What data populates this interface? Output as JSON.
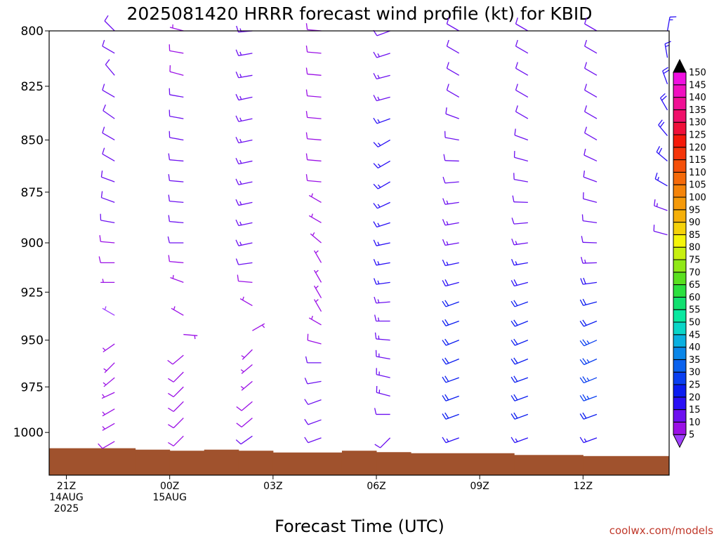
{
  "chart_data": {
    "type": "wind-barb-profile",
    "title": "2025081420 HRRR forecast wind profile (kt) for KBID",
    "xlabel": "Forecast Time (UTC)",
    "credit": "coolwx.com/models",
    "y_axis": {
      "reversed": true,
      "ylim": [
        800,
        1024
      ],
      "ticks": [
        800,
        825,
        850,
        875,
        900,
        925,
        950,
        975,
        1000
      ]
    },
    "x_axis": {
      "xlim": [
        0,
        18
      ],
      "ticks": [
        {
          "hour": 0.5,
          "lines": [
            "21Z",
            "14AUG",
            "2025"
          ]
        },
        {
          "hour": 3.5,
          "lines": [
            "00Z",
            "15AUG"
          ]
        },
        {
          "hour": 6.5,
          "lines": [
            "03Z"
          ]
        },
        {
          "hour": 9.5,
          "lines": [
            "06Z"
          ]
        },
        {
          "hour": 12.5,
          "lines": [
            "09Z"
          ]
        },
        {
          "hour": 15.5,
          "lines": [
            "12Z"
          ]
        }
      ]
    },
    "colorbar": {
      "label_unit": "kt",
      "levels": [
        5,
        10,
        15,
        20,
        25,
        30,
        35,
        40,
        45,
        50,
        55,
        60,
        65,
        70,
        75,
        80,
        85,
        90,
        95,
        100,
        105,
        110,
        115,
        120,
        125,
        130,
        135,
        140,
        145,
        150
      ],
      "colors": [
        "#9b10e6",
        "#6d10f0",
        "#2a10f5",
        "#0b1cf0",
        "#0a3ff0",
        "#0a62ee",
        "#0a86e8",
        "#0ab0e0",
        "#0ad6c8",
        "#0ae8a0",
        "#12e070",
        "#2ce040",
        "#5ae020",
        "#90e818",
        "#c8f010",
        "#f5f50a",
        "#f5d20a",
        "#f5b00a",
        "#f59a0a",
        "#f5840a",
        "#f56a0a",
        "#f5500a",
        "#f5350a",
        "#f51a0a",
        "#f0103a",
        "#f0106a",
        "#f01095",
        "#f010c0",
        "#f010e0",
        "#000000"
      ],
      "under_color": "#a040ff",
      "over_color": "#000000"
    },
    "terrain": {
      "color": "#a0522d",
      "surface_pressure": [
        {
          "x0": 0,
          "x1": 2.5,
          "p": 1008.8
        },
        {
          "x0": 2.5,
          "x1": 3.5,
          "p": 1009.6
        },
        {
          "x0": 3.5,
          "x1": 4.5,
          "p": 1010.2
        },
        {
          "x0": 4.5,
          "x1": 5.5,
          "p": 1009.6
        },
        {
          "x0": 5.5,
          "x1": 6.5,
          "p": 1010.2
        },
        {
          "x0": 6.5,
          "x1": 8.5,
          "p": 1011.2
        },
        {
          "x0": 8.5,
          "x1": 9.5,
          "p": 1010.2
        },
        {
          "x0": 9.5,
          "x1": 10.5,
          "p": 1011.0
        },
        {
          "x0": 10.5,
          "x1": 13.5,
          "p": 1011.6
        },
        {
          "x0": 13.5,
          "x1": 15.5,
          "p": 1012.6
        },
        {
          "x0": 15.5,
          "x1": 18,
          "p": 1013.2
        }
      ]
    },
    "profiles": [
      {
        "hour": 1.9,
        "levels": [
          800,
          810,
          820,
          830,
          840,
          850,
          860,
          870,
          880,
          890,
          900,
          910,
          920,
          937,
          952,
          962,
          970,
          978,
          987,
          995,
          1005
        ],
        "dir": [
          315,
          300,
          320,
          300,
          305,
          300,
          300,
          290,
          290,
          280,
          275,
          270,
          270,
          300,
          235,
          225,
          230,
          245,
          240,
          240,
          240
        ],
        "spd": [
          12,
          12,
          12,
          12,
          12,
          12,
          12,
          10,
          10,
          10,
          9,
          8,
          7,
          4,
          6,
          6,
          6,
          6,
          7,
          6,
          8
        ]
      },
      {
        "hour": 3.9,
        "levels": [
          800,
          810,
          820,
          830,
          840,
          850,
          860,
          870,
          880,
          890,
          900,
          910,
          920,
          937,
          947,
          958,
          967,
          975,
          983,
          992,
          1002
        ],
        "dir": [
          285,
          280,
          285,
          280,
          280,
          280,
          275,
          275,
          275,
          275,
          270,
          275,
          290,
          300,
          95,
          230,
          225,
          225,
          225,
          225,
          225
        ],
        "spd": [
          7,
          8,
          9,
          11,
          11,
          12,
          12,
          12,
          12,
          12,
          11,
          9,
          6,
          5,
          6,
          8,
          8,
          8,
          8,
          8,
          8
        ]
      },
      {
        "hour": 5.9,
        "levels": [
          800,
          810,
          820,
          830,
          840,
          850,
          860,
          870,
          880,
          890,
          900,
          910,
          920,
          932,
          945,
          955,
          963,
          972,
          983,
          992,
          1002
        ],
        "dir": [
          265,
          260,
          260,
          258,
          258,
          258,
          258,
          258,
          258,
          258,
          258,
          262,
          275,
          300,
          60,
          225,
          230,
          230,
          230,
          230,
          235
        ],
        "spd": [
          14,
          14,
          14,
          14,
          14,
          14,
          14,
          14,
          14,
          14,
          13,
          12,
          8,
          6,
          5,
          6,
          7,
          7,
          8,
          8,
          10
        ]
      },
      {
        "hour": 7.9,
        "levels": [
          800,
          810,
          820,
          830,
          840,
          850,
          860,
          870,
          880,
          890,
          900,
          910,
          920,
          928,
          935,
          942,
          952,
          962,
          972,
          982,
          993,
          1003
        ],
        "dir": [
          275,
          275,
          275,
          275,
          275,
          275,
          275,
          275,
          300,
          300,
          310,
          330,
          330,
          330,
          330,
          300,
          285,
          270,
          260,
          250,
          250,
          250
        ],
        "spd": [
          8,
          8,
          8,
          8,
          8,
          8,
          8,
          8,
          6,
          6,
          5,
          5,
          5,
          5,
          5,
          7,
          9,
          11,
          12,
          12,
          12,
          12
        ]
      },
      {
        "hour": 9.9,
        "levels": [
          800,
          810,
          820,
          830,
          840,
          850,
          860,
          870,
          880,
          890,
          900,
          910,
          920,
          930,
          940,
          950,
          960,
          970,
          980,
          990,
          1003
        ],
        "dir": [
          250,
          252,
          255,
          255,
          250,
          240,
          240,
          240,
          245,
          252,
          258,
          260,
          262,
          265,
          270,
          275,
          280,
          283,
          285,
          270,
          225
        ],
        "spd": [
          12,
          13,
          13,
          14,
          15,
          16,
          16,
          16,
          16,
          16,
          16,
          16,
          15,
          14,
          14,
          14,
          14,
          14,
          14,
          12,
          10
        ]
      },
      {
        "hour": 11.9,
        "levels": [
          800,
          810,
          820,
          830,
          840,
          850,
          860,
          870,
          880,
          890,
          900,
          910,
          920,
          930,
          940,
          950,
          960,
          970,
          980,
          990,
          1003
        ],
        "dir": [
          300,
          300,
          300,
          300,
          290,
          280,
          272,
          265,
          262,
          260,
          260,
          258,
          255,
          250,
          250,
          248,
          248,
          250,
          250,
          250,
          250
        ],
        "spd": [
          10,
          10,
          10,
          10,
          10,
          10,
          10,
          12,
          14,
          14,
          14,
          15,
          18,
          20,
          22,
          22,
          22,
          22,
          22,
          20,
          15
        ]
      },
      {
        "hour": 13.9,
        "levels": [
          800,
          810,
          820,
          830,
          840,
          850,
          860,
          870,
          880,
          890,
          900,
          910,
          920,
          930,
          940,
          950,
          960,
          970,
          980,
          990,
          1003
        ],
        "dir": [
          300,
          300,
          300,
          300,
          300,
          290,
          285,
          280,
          272,
          265,
          262,
          260,
          255,
          250,
          248,
          248,
          248,
          250,
          250,
          250,
          250
        ],
        "spd": [
          10,
          10,
          10,
          10,
          10,
          10,
          10,
          10,
          12,
          12,
          14,
          16,
          18,
          22,
          22,
          22,
          22,
          22,
          22,
          22,
          16
        ]
      },
      {
        "hour": 15.9,
        "levels": [
          800,
          810,
          820,
          830,
          840,
          850,
          860,
          870,
          880,
          890,
          900,
          910,
          920,
          930,
          940,
          950,
          960,
          970,
          980,
          990,
          1003
        ],
        "dir": [
          300,
          300,
          300,
          300,
          300,
          300,
          295,
          290,
          285,
          278,
          272,
          268,
          262,
          255,
          248,
          246,
          246,
          248,
          250,
          250,
          250
        ],
        "spd": [
          10,
          10,
          10,
          10,
          10,
          10,
          10,
          10,
          10,
          12,
          12,
          14,
          18,
          22,
          22,
          25,
          25,
          25,
          25,
          22,
          16
        ]
      },
      {
        "hour": 17.95,
        "levels": [
          800,
          812,
          824,
          836,
          848,
          860,
          872,
          884,
          896
        ],
        "dir": [
          10,
          350,
          340,
          330,
          320,
          310,
          300,
          290,
          285
        ],
        "spd": [
          16,
          16,
          18,
          18,
          18,
          18,
          16,
          14,
          12
        ]
      }
    ]
  }
}
